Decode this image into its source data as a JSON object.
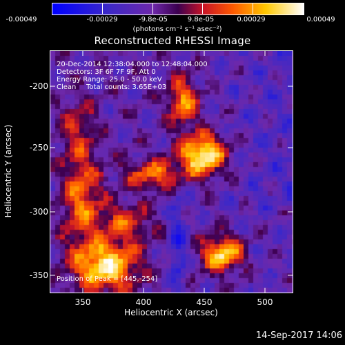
{
  "colorbar": {
    "min_color": "#0000ff",
    "max_color": "#ffffff",
    "ticks": [
      "-0.00049",
      "-0.00029",
      "-9.8e-05",
      "9.8e-05",
      "0.00029",
      "0.00049"
    ],
    "units": "(photons cm⁻² s⁻¹ asec⁻²)"
  },
  "title": "Reconstructed RHESSI Image",
  "annotations": {
    "time_range": "20-Dec-2014 12:38:04.000 to 12:48:04.000",
    "detectors": "Detectors: 3F 6F 7F 9F, Att 0",
    "energy": "Energy Range: 25.0 - 50.0 keV",
    "algorithm": "Clean",
    "total_counts": "Total counts: 3.65E+03",
    "peak": "Position of Peak = [445,-254]"
  },
  "axes": {
    "x_title": "Heliocentric X (arcsec)",
    "y_title": "Heliocentric Y (arcsec)",
    "x_ticks": [
      "350",
      "400",
      "450",
      "500"
    ],
    "y_ticks": [
      "-200",
      "-250",
      "-300",
      "-350"
    ]
  },
  "footer": {
    "timestamp": "14-Sep-2017 14:06"
  }
}
